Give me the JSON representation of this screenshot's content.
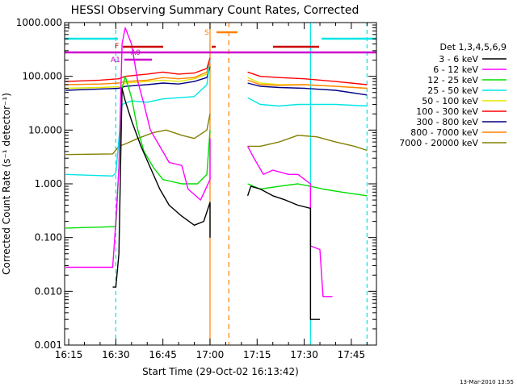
{
  "chart_data": {
    "type": "line",
    "title": "HESSI Observing Summary Count Rates, Corrected",
    "xlabel": "Start Time (29-Oct-02 16:13:42)",
    "ylabel": "Corrected Count Rate (s⁻¹ detector⁻¹)",
    "y_scale": "log",
    "ylim": [
      0.001,
      1000
    ],
    "xlim": [
      "16:13:42",
      "17:53"
    ],
    "x_ticks": [
      "16:15",
      "16:30",
      "16:45",
      "17:00",
      "17:15",
      "17:30",
      "17:45"
    ],
    "y_ticks": [
      "0.001",
      "0.010",
      "0.100",
      "1.000",
      "10.000",
      "100.000",
      "1000.000"
    ],
    "legend_title": "Det 1,3,4,5,6,9",
    "legend_position": "right",
    "series": [
      {
        "name": "3 - 6 keV",
        "color": "#000000",
        "points": [
          [
            "16:29",
            0.012
          ],
          [
            "16:30",
            0.012
          ],
          [
            "16:31",
            0.05
          ],
          [
            "16:32",
            60
          ],
          [
            "16:33",
            35
          ],
          [
            "16:35",
            15
          ],
          [
            "16:38",
            5
          ],
          [
            "16:41",
            2.0
          ],
          [
            "16:44",
            0.8
          ],
          [
            "16:47",
            0.4
          ],
          [
            "16:51",
            0.25
          ],
          [
            "16:55",
            0.17
          ],
          [
            "16:58",
            0.2
          ],
          [
            "17:00",
            0.45
          ],
          [
            "17:00",
            0.1
          ],
          null,
          [
            "17:12",
            0.6
          ],
          [
            "17:13",
            0.9
          ],
          [
            "17:16",
            0.8
          ],
          [
            "17:20",
            0.6
          ],
          [
            "17:24",
            0.5
          ],
          [
            "17:28",
            0.4
          ],
          [
            "17:32",
            0.35
          ],
          [
            "17:32",
            0.003
          ],
          [
            "17:35",
            0.003
          ]
        ]
      },
      {
        "name": "6 - 12 keV",
        "color": "#ff00ff",
        "points": [
          [
            "16:14",
            0.028
          ],
          [
            "16:29",
            0.028
          ],
          [
            "16:30",
            0.2
          ],
          [
            "16:31",
            2
          ],
          [
            "16:32",
            400
          ],
          [
            "16:33",
            800
          ],
          [
            "16:35",
            400
          ],
          [
            "16:37",
            80
          ],
          [
            "16:39",
            30
          ],
          [
            "16:41",
            10
          ],
          [
            "16:44",
            5
          ],
          [
            "16:47",
            2.5
          ],
          [
            "16:51",
            2.2
          ],
          [
            "16:53",
            0.8
          ],
          [
            "16:57",
            0.5
          ],
          [
            "17:00",
            1.2
          ],
          [
            "17:00",
            7
          ],
          null,
          [
            "17:12",
            5
          ],
          [
            "17:14",
            3
          ],
          [
            "17:17",
            1.5
          ],
          [
            "17:20",
            1.8
          ],
          [
            "17:25",
            1.5
          ],
          [
            "17:28",
            1.5
          ],
          [
            "17:32",
            1.0
          ],
          [
            "17:32",
            0.07
          ],
          [
            "17:35",
            0.06
          ],
          [
            "17:36",
            0.008
          ],
          [
            "17:39",
            0.008
          ]
        ]
      },
      {
        "name": "12 - 25 keV",
        "color": "#00dd00",
        "points": [
          [
            "16:14",
            0.15
          ],
          [
            "16:30",
            0.16
          ],
          [
            "16:31",
            2
          ],
          [
            "16:32",
            60
          ],
          [
            "16:33",
            100
          ],
          [
            "16:35",
            40
          ],
          [
            "16:37",
            10
          ],
          [
            "16:39",
            4
          ],
          [
            "16:42",
            2
          ],
          [
            "16:45",
            1.2
          ],
          [
            "16:51",
            1.0
          ],
          [
            "16:56",
            1.0
          ],
          [
            "16:59",
            1.5
          ],
          [
            "17:00",
            10
          ],
          null,
          [
            "17:12",
            1.0
          ],
          [
            "17:16",
            0.8
          ],
          [
            "17:22",
            0.9
          ],
          [
            "17:28",
            1.0
          ],
          [
            "17:32",
            0.9
          ],
          [
            "17:36",
            0.8
          ],
          [
            "17:42",
            0.7
          ],
          [
            "17:50",
            0.6
          ]
        ]
      },
      {
        "name": "25 - 50 keV",
        "color": "#00e5e5",
        "points": [
          [
            "16:14",
            1.5
          ],
          [
            "16:29",
            1.4
          ],
          [
            "16:30",
            1.6
          ],
          [
            "16:32",
            30
          ],
          [
            "16:35",
            35
          ],
          [
            "16:40",
            33
          ],
          [
            "16:45",
            38
          ],
          [
            "16:50",
            40
          ],
          [
            "16:55",
            42
          ],
          [
            "16:59",
            70
          ],
          [
            "17:00",
            200
          ],
          null,
          [
            "17:12",
            40
          ],
          [
            "17:16",
            30
          ],
          [
            "17:22",
            28
          ],
          [
            "17:28",
            30
          ],
          [
            "17:32",
            30
          ],
          [
            "17:40",
            30
          ],
          [
            "17:50",
            28
          ]
        ]
      },
      {
        "name": "50 - 100 keV",
        "color": "#e5e500",
        "points": [
          [
            "16:14",
            60
          ],
          [
            "16:25",
            62
          ],
          [
            "16:31",
            64
          ],
          [
            "16:33",
            75
          ],
          [
            "16:40",
            80
          ],
          [
            "16:45",
            85
          ],
          [
            "16:50",
            80
          ],
          [
            "16:55",
            90
          ],
          [
            "16:59",
            110
          ],
          [
            "17:00",
            200
          ],
          null,
          [
            "17:12",
            95
          ],
          [
            "17:16",
            75
          ],
          [
            "17:22",
            70
          ],
          [
            "17:30",
            70
          ],
          [
            "17:40",
            65
          ],
          [
            "17:50",
            60
          ]
        ]
      },
      {
        "name": "100 - 300 keV",
        "color": "#ff0000",
        "points": [
          [
            "16:14",
            80
          ],
          [
            "16:25",
            85
          ],
          [
            "16:31",
            90
          ],
          [
            "16:33",
            100
          ],
          [
            "16:40",
            110
          ],
          [
            "16:45",
            120
          ],
          [
            "16:50",
            110
          ],
          [
            "16:55",
            115
          ],
          [
            "16:59",
            140
          ],
          [
            "17:00",
            220
          ],
          null,
          [
            "17:12",
            120
          ],
          [
            "17:16",
            100
          ],
          [
            "17:22",
            95
          ],
          [
            "17:30",
            90
          ],
          [
            "17:40",
            80
          ],
          [
            "17:50",
            70
          ]
        ]
      },
      {
        "name": "300 - 800 keV",
        "color": "#000080",
        "points": [
          [
            "16:14",
            55
          ],
          [
            "16:25",
            58
          ],
          [
            "16:31",
            60
          ],
          [
            "16:33",
            65
          ],
          [
            "16:40",
            70
          ],
          [
            "16:45",
            75
          ],
          [
            "16:50",
            72
          ],
          [
            "16:55",
            80
          ],
          [
            "16:59",
            95
          ],
          [
            "17:00",
            150
          ],
          null,
          [
            "17:12",
            75
          ],
          [
            "17:16",
            65
          ],
          [
            "17:22",
            62
          ],
          [
            "17:30",
            60
          ],
          [
            "17:40",
            55
          ],
          [
            "17:50",
            45
          ]
        ]
      },
      {
        "name": "800 - 7000 keV",
        "color": "#ff8000",
        "points": [
          [
            "16:14",
            70
          ],
          [
            "16:25",
            72
          ],
          [
            "16:31",
            75
          ],
          [
            "16:33",
            80
          ],
          [
            "16:40",
            85
          ],
          [
            "16:45",
            95
          ],
          [
            "16:50",
            90
          ],
          [
            "16:55",
            95
          ],
          [
            "16:59",
            120
          ],
          [
            "17:00",
            200
          ],
          null,
          [
            "17:12",
            85
          ],
          [
            "17:16",
            70
          ],
          [
            "17:22",
            68
          ],
          [
            "17:30",
            70
          ],
          [
            "17:40",
            65
          ],
          [
            "17:50",
            60
          ]
        ]
      },
      {
        "name": "7000 - 20000 keV",
        "color": "#808000",
        "points": [
          [
            "16:14",
            3.5
          ],
          [
            "16:29",
            3.6
          ],
          [
            "16:31",
            5
          ],
          [
            "16:33",
            5.5
          ],
          [
            "16:37",
            7
          ],
          [
            "16:42",
            9
          ],
          [
            "16:46",
            10
          ],
          [
            "16:51",
            8
          ],
          [
            "16:55",
            7
          ],
          [
            "16:59",
            10
          ],
          [
            "17:00",
            20
          ],
          null,
          [
            "17:12",
            5
          ],
          [
            "17:16",
            5
          ],
          [
            "17:22",
            6
          ],
          [
            "17:28",
            8
          ],
          [
            "17:34",
            7.5
          ],
          [
            "17:40",
            6
          ],
          [
            "17:46",
            5
          ],
          [
            "17:50",
            4.2
          ]
        ]
      }
    ],
    "flags": [
      {
        "label": "F",
        "color": "#cc0000"
      },
      {
        "label": "A0",
        "color": "#cc00cc"
      },
      {
        "label": "A1",
        "color": "#cc00cc"
      },
      {
        "label": "S",
        "color": "#ff8000"
      }
    ],
    "footer_date": "13-Mar-2010 13:55"
  }
}
